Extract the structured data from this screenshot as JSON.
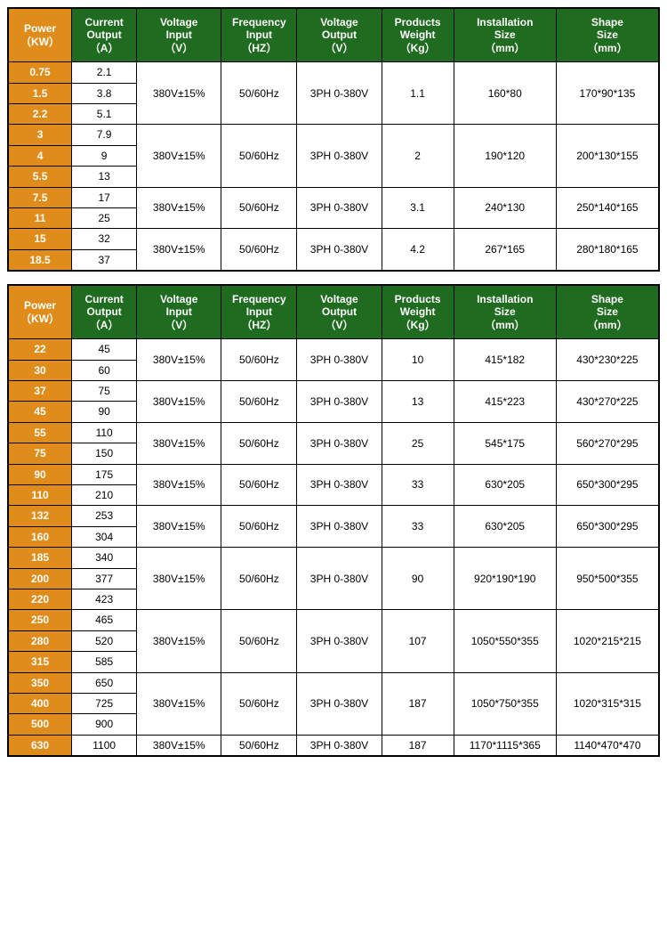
{
  "colors": {
    "header_bg": "#1f6b1f",
    "header_fg": "#ffffff",
    "power_bg": "#e08c1a",
    "power_fg": "#ffffff",
    "border": "#000000",
    "cell_bg": "#ffffff"
  },
  "headers": [
    {
      "l1": "Power",
      "l2": "（KW）"
    },
    {
      "l1": "Current",
      "l2": "Output",
      "l3": "（A）"
    },
    {
      "l1": "Voltage",
      "l2": "Input",
      "l3": "（V）"
    },
    {
      "l1": "Frequency",
      "l2": "Input",
      "l3": "（HZ）"
    },
    {
      "l1": "Voltage",
      "l2": "Output",
      "l3": "（V）"
    },
    {
      "l1": "Products",
      "l2": "Weight",
      "l3": "（Kg）"
    },
    {
      "l1": "Installation",
      "l2": "Size",
      "l3": "（mm）"
    },
    {
      "l1": "Shape",
      "l2": "Size",
      "l3": "（mm）"
    }
  ],
  "table1": [
    {
      "powers": [
        "0.75",
        "1.5",
        "2.2"
      ],
      "currents": [
        "2.1",
        "3.8",
        "5.1"
      ],
      "vi": "380V±15%",
      "fi": "50/60Hz",
      "vo": "3PH 0-380V",
      "wt": "1.1",
      "ins": "160*80",
      "shp": "170*90*135"
    },
    {
      "powers": [
        "3",
        "4",
        "5.5"
      ],
      "currents": [
        "7.9",
        "9",
        "13"
      ],
      "vi": "380V±15%",
      "fi": "50/60Hz",
      "vo": "3PH 0-380V",
      "wt": "2",
      "ins": "190*120",
      "shp": "200*130*155"
    },
    {
      "powers": [
        "7.5",
        "11"
      ],
      "currents": [
        "17",
        "25"
      ],
      "vi": "380V±15%",
      "fi": "50/60Hz",
      "vo": "3PH 0-380V",
      "wt": "3.1",
      "ins": "240*130",
      "shp": "250*140*165"
    },
    {
      "powers": [
        "15",
        "18.5"
      ],
      "currents": [
        "32",
        "37"
      ],
      "vi": "380V±15%",
      "fi": "50/60Hz",
      "vo": "3PH 0-380V",
      "wt": "4.2",
      "ins": "267*165",
      "shp": "280*180*165"
    }
  ],
  "table2": [
    {
      "powers": [
        "22",
        "30"
      ],
      "currents": [
        "45",
        "60"
      ],
      "vi": "380V±15%",
      "fi": "50/60Hz",
      "vo": "3PH 0-380V",
      "wt": "10",
      "ins": "415*182",
      "shp": "430*230*225"
    },
    {
      "powers": [
        "37",
        "45"
      ],
      "currents": [
        "75",
        "90"
      ],
      "vi": "380V±15%",
      "fi": "50/60Hz",
      "vo": "3PH 0-380V",
      "wt": "13",
      "ins": "415*223",
      "shp": "430*270*225"
    },
    {
      "powers": [
        "55",
        "75"
      ],
      "currents": [
        "110",
        "150"
      ],
      "vi": "380V±15%",
      "fi": "50/60Hz",
      "vo": "3PH 0-380V",
      "wt": "25",
      "ins": "545*175",
      "shp": "560*270*295"
    },
    {
      "powers": [
        "90",
        "110"
      ],
      "currents": [
        "175",
        "210"
      ],
      "vi": "380V±15%",
      "fi": "50/60Hz",
      "vo": "3PH 0-380V",
      "wt": "33",
      "ins": "630*205",
      "shp": "650*300*295"
    },
    {
      "powers": [
        "132",
        "160"
      ],
      "currents": [
        "253",
        "304"
      ],
      "vi": "380V±15%",
      "fi": "50/60Hz",
      "vo": "3PH 0-380V",
      "wt": "33",
      "ins": "630*205",
      "shp": "650*300*295"
    },
    {
      "powers": [
        "185",
        "200",
        "220"
      ],
      "currents": [
        "340",
        "377",
        "423"
      ],
      "vi": "380V±15%",
      "fi": "50/60Hz",
      "vo": "3PH 0-380V",
      "wt": "90",
      "ins": "920*190*190",
      "shp": "950*500*355"
    },
    {
      "powers": [
        "250",
        "280",
        "315"
      ],
      "currents": [
        "465",
        "520",
        "585"
      ],
      "vi": "380V±15%",
      "fi": "50/60Hz",
      "vo": "3PH 0-380V",
      "wt": "107",
      "ins": "1050*550*355",
      "shp": "1020*215*215"
    },
    {
      "powers": [
        "350",
        "400",
        "500"
      ],
      "currents": [
        "650",
        "725",
        "900"
      ],
      "vi": "380V±15%",
      "fi": "50/60Hz",
      "vo": "3PH 0-380V",
      "wt": "187",
      "ins": "1050*750*355",
      "shp": "1020*315*315"
    },
    {
      "powers": [
        "630"
      ],
      "currents": [
        "1100"
      ],
      "vi": "380V±15%",
      "fi": "50/60Hz",
      "vo": "3PH 0-380V",
      "wt": "187",
      "ins": "1170*1115*365",
      "shp": "1140*470*470"
    }
  ]
}
